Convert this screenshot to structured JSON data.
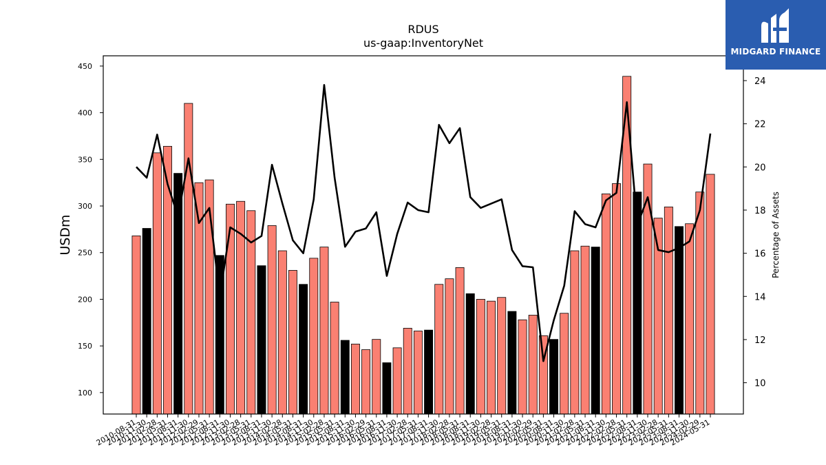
{
  "logo": {
    "text": "MIDGARD FINANCE",
    "bg_color": "#2a5db0"
  },
  "chart_data": {
    "type": "bar",
    "title": "RDUS",
    "subtitle": "us-gaap:InventoryNet",
    "ylabel": "USDm",
    "ylabel_right": "Percentage of Assets",
    "ylim": [
      77,
      461
    ],
    "ylim_right": [
      8.55,
      25.15
    ],
    "yticks": [
      100,
      150,
      200,
      250,
      300,
      350,
      400,
      450
    ],
    "yticks_right": [
      10,
      12,
      14,
      16,
      18,
      20,
      22,
      24
    ],
    "grid": false,
    "colors": {
      "bar_quarter": "#fa8072",
      "bar_fiscal_year_end": "#000000",
      "line": "#000000"
    },
    "categories": [
      "2010-08-31",
      "2010-11-30",
      "2011-02-28",
      "2011-05-31",
      "2011-08-31",
      "2011-11-30",
      "2012-02-29",
      "2012-05-31",
      "2012-08-31",
      "2012-11-30",
      "2013-02-28",
      "2013-05-31",
      "2013-08-31",
      "2013-11-30",
      "2014-02-28",
      "2014-05-31",
      "2014-08-31",
      "2014-11-30",
      "2015-02-28",
      "2015-05-31",
      "2015-08-31",
      "2015-11-30",
      "2016-02-29",
      "2016-05-31",
      "2016-08-31",
      "2016-11-30",
      "2017-02-28",
      "2017-05-31",
      "2017-08-31",
      "2017-11-30",
      "2018-02-28",
      "2018-05-31",
      "2018-08-31",
      "2018-11-30",
      "2019-02-28",
      "2019-05-31",
      "2019-08-31",
      "2019-11-30",
      "2020-02-29",
      "2020-05-31",
      "2020-08-31",
      "2020-11-30",
      "2021-02-28",
      "2021-05-31",
      "2021-08-31",
      "2021-11-30",
      "2022-02-28",
      "2022-05-31",
      "2022-08-31",
      "2022-11-30",
      "2023-02-28",
      "2023-05-31",
      "2023-08-31",
      "2023-11-30",
      "2024-02-29",
      "2024-05-31"
    ],
    "fiscal_year_end": [
      false,
      true,
      false,
      false,
      true,
      false,
      false,
      false,
      true,
      false,
      false,
      false,
      true,
      false,
      false,
      false,
      true,
      false,
      false,
      false,
      true,
      false,
      false,
      false,
      true,
      false,
      false,
      false,
      true,
      false,
      false,
      false,
      true,
      false,
      false,
      false,
      true,
      false,
      false,
      false,
      true,
      false,
      false,
      false,
      true,
      false,
      false,
      false,
      true,
      false,
      false,
      false,
      true,
      false,
      false,
      false
    ],
    "series": [
      {
        "name": "InventoryNet",
        "kind": "bar",
        "values": [
          268,
          276,
          357,
          364,
          335,
          410,
          325,
          328,
          247,
          302,
          305,
          295,
          236,
          279,
          252,
          231,
          216,
          244,
          256,
          197,
          156,
          152,
          146,
          157,
          132,
          148,
          169,
          166,
          167,
          216,
          222,
          234,
          206,
          200,
          198,
          202,
          187,
          178,
          183,
          161,
          157,
          185,
          252,
          257,
          256,
          313,
          324,
          439,
          315,
          345,
          287,
          299,
          278,
          281,
          315,
          334
        ]
      },
      {
        "name": "Percentage of Assets",
        "kind": "line",
        "axis": "right",
        "values": [
          20.0,
          19.5,
          21.5,
          19.2,
          17.7,
          20.4,
          17.4,
          18.1,
          14.0,
          17.2,
          16.9,
          16.5,
          16.8,
          20.1,
          18.3,
          16.6,
          16.0,
          18.5,
          23.8,
          19.5,
          16.3,
          17.0,
          17.15,
          17.9,
          14.95,
          16.9,
          18.35,
          18.0,
          17.9,
          21.95,
          21.1,
          21.8,
          18.6,
          18.1,
          18.3,
          18.5,
          16.15,
          15.4,
          15.35,
          11.0,
          12.9,
          14.5,
          17.95,
          17.35,
          17.2,
          18.45,
          18.8,
          23.0,
          17.3,
          18.6,
          16.15,
          16.05,
          16.25,
          16.55,
          18.0,
          21.55
        ]
      }
    ]
  }
}
